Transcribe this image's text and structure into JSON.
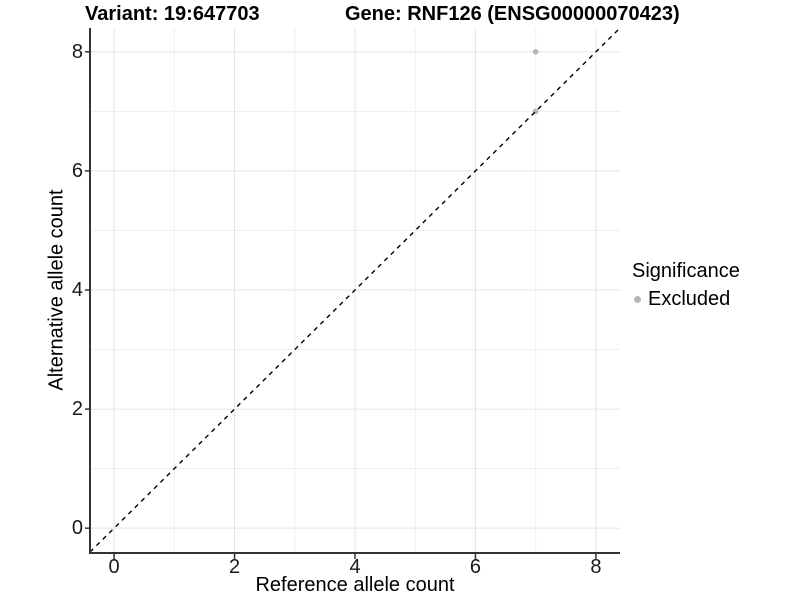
{
  "colors": {
    "background": "#ffffff",
    "axis_line": "#333333",
    "grid_major": "#e4e4e4",
    "grid_minor": "#efefef",
    "axis_text": "#1a1a1a",
    "reference_line": "#000000",
    "excluded_point": "#b5b5b5"
  },
  "chart_data": {
    "type": "scatter",
    "title_left": "Variant: 19:647703",
    "title_right": "Gene: RNF126 (ENSG00000070423)",
    "xlabel": "Reference allele count",
    "ylabel": "Alternative allele count",
    "xlim": [
      -0.4,
      8.4
    ],
    "ylim": [
      -0.4,
      8.4
    ],
    "x_major_ticks": [
      0,
      2,
      4,
      6,
      8
    ],
    "y_major_ticks": [
      0,
      2,
      4,
      6,
      8
    ],
    "x_minor_ticks": [
      1,
      3,
      5,
      7
    ],
    "y_minor_ticks": [
      1,
      3,
      5,
      7
    ],
    "grid": "major+minor",
    "legend": {
      "position": "right",
      "title": "Significance",
      "items": [
        {
          "label": "Excluded",
          "color": "#b5b5b5"
        }
      ]
    },
    "series": [
      {
        "name": "Excluded",
        "color": "#b5b5b5",
        "points": [
          {
            "x": 7,
            "y": 8
          },
          {
            "x": 7,
            "y": 7
          }
        ]
      }
    ],
    "reference_line": {
      "kind": "identity",
      "slope": 1,
      "intercept": 0,
      "style": "dashed",
      "color": "#000000"
    }
  }
}
